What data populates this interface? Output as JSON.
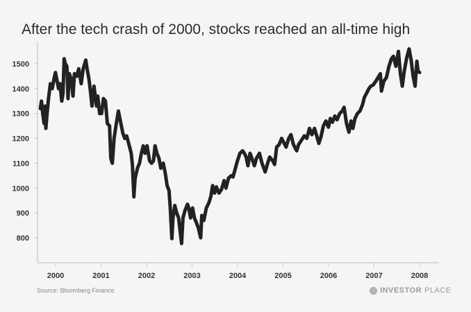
{
  "chart_data": {
    "type": "line",
    "title": "After the tech crash of 2000, stocks reached an all-time high",
    "xlabel": "",
    "ylabel": "",
    "x_ticks": [
      "2000",
      "2001",
      "2002",
      "2003",
      "2004",
      "2005",
      "2006",
      "2007",
      "2008"
    ],
    "y_ticks": [
      800,
      900,
      1000,
      1100,
      1200,
      1300,
      1400,
      1500
    ],
    "ylim": [
      700,
      1600
    ],
    "xlim": [
      "1999-09-01",
      "2008-01-01"
    ],
    "grid": false,
    "line_color": "#222222",
    "series": [
      {
        "points": [
          [
            "1999-09-01",
            1320
          ],
          [
            "1999-09-10",
            1350
          ],
          [
            "1999-09-20",
            1300
          ],
          [
            "1999-10-01",
            1260
          ],
          [
            "1999-10-10",
            1330
          ],
          [
            "1999-10-15",
            1240
          ],
          [
            "1999-10-25",
            1300
          ],
          [
            "1999-11-05",
            1360
          ],
          [
            "1999-11-20",
            1420
          ],
          [
            "1999-12-05",
            1400
          ],
          [
            "1999-12-20",
            1440
          ],
          [
            "1999-12-31",
            1465
          ],
          [
            "2000-01-10",
            1440
          ],
          [
            "2000-01-25",
            1400
          ],
          [
            "2000-02-05",
            1420
          ],
          [
            "2000-02-20",
            1350
          ],
          [
            "2000-03-01",
            1380
          ],
          [
            "2000-03-10",
            1520
          ],
          [
            "2000-03-20",
            1500
          ],
          [
            "2000-04-01",
            1490
          ],
          [
            "2000-04-10",
            1360
          ],
          [
            "2000-04-20",
            1460
          ],
          [
            "2000-05-05",
            1440
          ],
          [
            "2000-05-20",
            1370
          ],
          [
            "2000-06-01",
            1460
          ],
          [
            "2000-06-20",
            1450
          ],
          [
            "2000-07-05",
            1480
          ],
          [
            "2000-07-25",
            1420
          ],
          [
            "2000-08-10",
            1480
          ],
          [
            "2000-08-31",
            1515
          ],
          [
            "2000-09-10",
            1480
          ],
          [
            "2000-09-25",
            1440
          ],
          [
            "2000-10-10",
            1380
          ],
          [
            "2000-10-20",
            1330
          ],
          [
            "2000-11-05",
            1410
          ],
          [
            "2000-11-25",
            1330
          ],
          [
            "2000-12-05",
            1370
          ],
          [
            "2000-12-20",
            1300
          ],
          [
            "2001-01-05",
            1300
          ],
          [
            "2001-01-20",
            1360
          ],
          [
            "2001-02-05",
            1350
          ],
          [
            "2001-02-20",
            1260
          ],
          [
            "2001-03-10",
            1250
          ],
          [
            "2001-03-20",
            1120
          ],
          [
            "2001-04-01",
            1100
          ],
          [
            "2001-04-15",
            1200
          ],
          [
            "2001-04-30",
            1250
          ],
          [
            "2001-05-20",
            1310
          ],
          [
            "2001-06-05",
            1270
          ],
          [
            "2001-06-25",
            1220
          ],
          [
            "2001-07-10",
            1200
          ],
          [
            "2001-07-25",
            1210
          ],
          [
            "2001-08-10",
            1180
          ],
          [
            "2001-08-31",
            1140
          ],
          [
            "2001-09-10",
            1090
          ],
          [
            "2001-09-21",
            965
          ],
          [
            "2001-10-01",
            1040
          ],
          [
            "2001-10-20",
            1080
          ],
          [
            "2001-11-05",
            1100
          ],
          [
            "2001-11-20",
            1140
          ],
          [
            "2001-12-05",
            1170
          ],
          [
            "2001-12-20",
            1140
          ],
          [
            "2002-01-05",
            1170
          ],
          [
            "2002-01-25",
            1110
          ],
          [
            "2002-02-10",
            1100
          ],
          [
            "2002-02-25",
            1110
          ],
          [
            "2002-03-10",
            1170
          ],
          [
            "2002-03-25",
            1140
          ],
          [
            "2002-04-10",
            1120
          ],
          [
            "2002-04-25",
            1080
          ],
          [
            "2002-05-15",
            1100
          ],
          [
            "2002-05-31",
            1060
          ],
          [
            "2002-06-15",
            1010
          ],
          [
            "2002-06-30",
            990
          ],
          [
            "2002-07-10",
            920
          ],
          [
            "2002-07-23",
            797
          ],
          [
            "2002-08-01",
            880
          ],
          [
            "2002-08-15",
            930
          ],
          [
            "2002-08-31",
            900
          ],
          [
            "2002-09-15",
            880
          ],
          [
            "2002-09-30",
            815
          ],
          [
            "2002-10-09",
            777
          ],
          [
            "2002-10-20",
            880
          ],
          [
            "2002-11-05",
            910
          ],
          [
            "2002-11-25",
            935
          ],
          [
            "2002-12-05",
            920
          ],
          [
            "2002-12-20",
            880
          ],
          [
            "2003-01-05",
            920
          ],
          [
            "2003-01-20",
            880
          ],
          [
            "2003-02-05",
            860
          ],
          [
            "2003-02-20",
            840
          ],
          [
            "2003-03-11",
            800
          ],
          [
            "2003-03-20",
            890
          ],
          [
            "2003-04-05",
            870
          ],
          [
            "2003-04-25",
            920
          ],
          [
            "2003-05-15",
            940
          ],
          [
            "2003-05-31",
            965
          ],
          [
            "2003-06-15",
            1010
          ],
          [
            "2003-07-01",
            980
          ],
          [
            "2003-07-15",
            1005
          ],
          [
            "2003-08-05",
            980
          ],
          [
            "2003-08-25",
            995
          ],
          [
            "2003-09-15",
            1030
          ],
          [
            "2003-09-30",
            1000
          ],
          [
            "2003-10-20",
            1040
          ],
          [
            "2003-11-10",
            1050
          ],
          [
            "2003-11-25",
            1045
          ],
          [
            "2003-12-15",
            1080
          ],
          [
            "2003-12-31",
            1110
          ],
          [
            "2004-01-20",
            1140
          ],
          [
            "2004-02-10",
            1150
          ],
          [
            "2004-02-25",
            1140
          ],
          [
            "2004-03-10",
            1125
          ],
          [
            "2004-03-24",
            1090
          ],
          [
            "2004-04-10",
            1140
          ],
          [
            "2004-04-25",
            1120
          ],
          [
            "2004-05-15",
            1090
          ],
          [
            "2004-06-01",
            1120
          ],
          [
            "2004-06-25",
            1140
          ],
          [
            "2004-07-15",
            1100
          ],
          [
            "2004-08-10",
            1065
          ],
          [
            "2004-08-30",
            1100
          ],
          [
            "2004-09-15",
            1125
          ],
          [
            "2004-10-10",
            1110
          ],
          [
            "2004-10-25",
            1095
          ],
          [
            "2004-11-10",
            1165
          ],
          [
            "2004-11-30",
            1175
          ],
          [
            "2004-12-20",
            1200
          ],
          [
            "2005-01-05",
            1185
          ],
          [
            "2005-01-25",
            1165
          ],
          [
            "2005-02-15",
            1200
          ],
          [
            "2005-03-05",
            1215
          ],
          [
            "2005-03-25",
            1175
          ],
          [
            "2005-04-20",
            1150
          ],
          [
            "2005-05-05",
            1175
          ],
          [
            "2005-05-25",
            1190
          ],
          [
            "2005-06-20",
            1210
          ],
          [
            "2005-07-10",
            1200
          ],
          [
            "2005-08-01",
            1240
          ],
          [
            "2005-08-20",
            1215
          ],
          [
            "2005-09-10",
            1240
          ],
          [
            "2005-09-25",
            1215
          ],
          [
            "2005-10-15",
            1180
          ],
          [
            "2005-10-31",
            1205
          ],
          [
            "2005-11-20",
            1250
          ],
          [
            "2005-12-10",
            1270
          ],
          [
            "2005-12-31",
            1245
          ],
          [
            "2006-01-15",
            1280
          ],
          [
            "2006-02-01",
            1265
          ],
          [
            "2006-02-20",
            1290
          ],
          [
            "2006-03-10",
            1275
          ],
          [
            "2006-03-31",
            1300
          ],
          [
            "2006-04-20",
            1310
          ],
          [
            "2006-05-05",
            1325
          ],
          [
            "2006-05-25",
            1260
          ],
          [
            "2006-06-13",
            1225
          ],
          [
            "2006-06-30",
            1270
          ],
          [
            "2006-07-15",
            1240
          ],
          [
            "2006-08-01",
            1280
          ],
          [
            "2006-08-20",
            1300
          ],
          [
            "2006-09-10",
            1310
          ],
          [
            "2006-09-30",
            1335
          ],
          [
            "2006-10-15",
            1365
          ],
          [
            "2006-10-31",
            1380
          ],
          [
            "2006-11-20",
            1400
          ],
          [
            "2006-12-05",
            1410
          ],
          [
            "2006-12-25",
            1415
          ],
          [
            "2007-01-15",
            1430
          ],
          [
            "2007-02-20",
            1460
          ],
          [
            "2007-03-01",
            1390
          ],
          [
            "2007-03-20",
            1430
          ],
          [
            "2007-04-10",
            1445
          ],
          [
            "2007-04-30",
            1490
          ],
          [
            "2007-05-20",
            1520
          ],
          [
            "2007-06-05",
            1530
          ],
          [
            "2007-06-25",
            1490
          ],
          [
            "2007-07-15",
            1550
          ],
          [
            "2007-07-31",
            1460
          ],
          [
            "2007-08-15",
            1410
          ],
          [
            "2007-08-31",
            1470
          ],
          [
            "2007-09-20",
            1525
          ],
          [
            "2007-10-09",
            1560
          ],
          [
            "2007-10-25",
            1515
          ],
          [
            "2007-11-10",
            1450
          ],
          [
            "2007-11-26",
            1410
          ],
          [
            "2007-12-10",
            1510
          ],
          [
            "2007-12-20",
            1470
          ],
          [
            "2008-01-01",
            1465
          ]
        ]
      }
    ],
    "source": "Source: Bloomberg Finance"
  },
  "logo": {
    "text_bold": "INVESTOR",
    "text_light": "PLACE"
  }
}
